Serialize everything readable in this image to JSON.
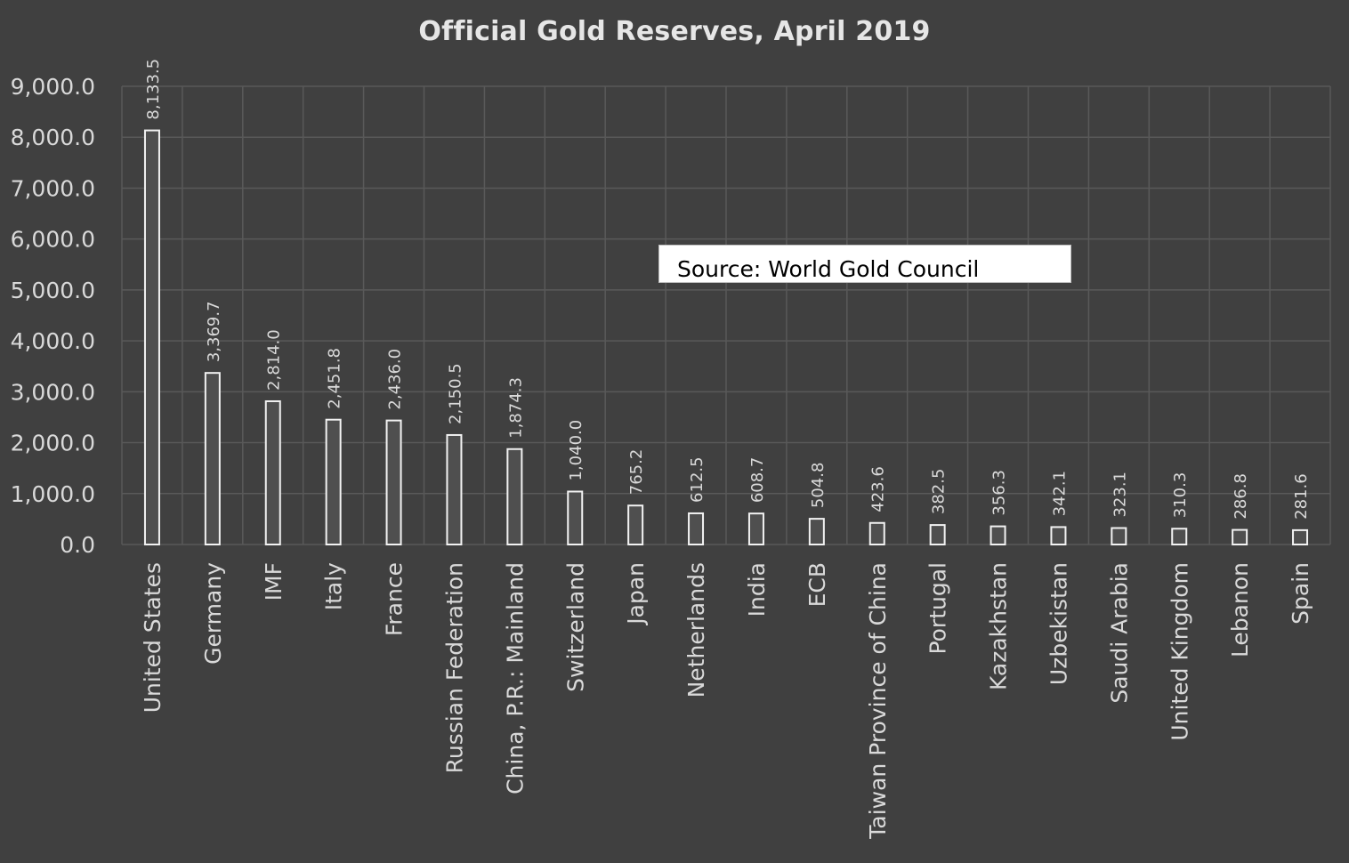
{
  "chart_data": {
    "type": "bar",
    "title": "Official Gold Reserves, April 2019",
    "xlabel": "",
    "ylabel": "",
    "ylim": [
      0,
      9000
    ],
    "grid": true,
    "yticks": [
      "0.0",
      "1,000.0",
      "2,000.0",
      "3,000.0",
      "4,000.0",
      "5,000.0",
      "6,000.0",
      "7,000.0",
      "8,000.0",
      "9,000.0"
    ],
    "categories": [
      "United States",
      "Germany",
      "IMF",
      "Italy",
      "France",
      "Russian Federation",
      "China, P.R.: Mainland",
      "Switzerland",
      "Japan",
      "Netherlands",
      "India",
      "ECB",
      "Taiwan Province of China",
      "Portugal",
      "Kazakhstan",
      "Uzbekistan",
      "Saudi Arabia",
      "United Kingdom",
      "Lebanon",
      "Spain"
    ],
    "values": [
      8133.5,
      3369.7,
      2814.0,
      2451.8,
      2436.0,
      2150.5,
      1874.3,
      1040.0,
      765.2,
      612.5,
      608.7,
      504.8,
      423.6,
      382.5,
      356.3,
      342.1,
      323.1,
      310.3,
      286.8,
      281.6
    ],
    "data_labels": [
      "8,133.5",
      "3,369.7",
      "2,814.0",
      "2,451.8",
      "2,436.0",
      "2,150.5",
      "1,874.3",
      "1,040.0",
      "765.2",
      "612.5",
      "608.7",
      "504.8",
      "423.6",
      "382.5",
      "356.3",
      "342.1",
      "323.1",
      "310.3",
      "286.8",
      "281.6"
    ],
    "annotation": "Source: World Gold Council",
    "colors": {
      "background": "#404040",
      "bar_fill": "#4f4f4f",
      "bar_outline": "#f2f2f2",
      "grid": "#595959",
      "text": "#d9d9d9"
    }
  }
}
